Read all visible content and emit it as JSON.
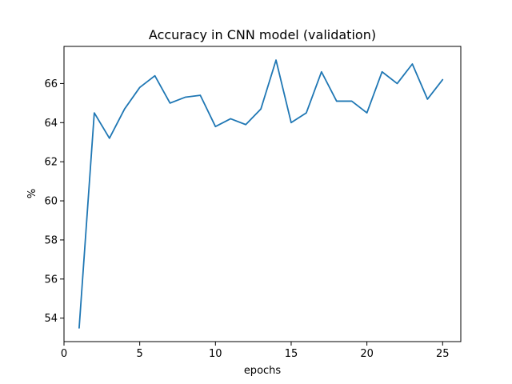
{
  "chart_data": {
    "type": "line",
    "title": "Accuracy in CNN model (validation)",
    "xlabel": "epochs",
    "ylabel": "%",
    "xlim": [
      0,
      26.2
    ],
    "ylim": [
      52.8,
      67.9
    ],
    "xticks": [
      0,
      5,
      10,
      15,
      20,
      25
    ],
    "yticks": [
      54,
      56,
      58,
      60,
      62,
      64,
      66
    ],
    "grid": false,
    "legend": "none",
    "series": [
      {
        "color": "#1f77b4",
        "x": [
          1,
          2,
          3,
          4,
          5,
          6,
          7,
          8,
          9,
          10,
          11,
          12,
          13,
          14,
          15,
          16,
          17,
          18,
          19,
          20,
          21,
          22,
          23,
          24,
          25
        ],
        "y": [
          53.5,
          64.5,
          63.2,
          64.7,
          65.8,
          66.4,
          65.0,
          65.3,
          65.4,
          63.8,
          64.2,
          63.9,
          64.7,
          67.2,
          64.0,
          64.5,
          66.6,
          65.1,
          65.1,
          64.5,
          66.6,
          66.0,
          67.0,
          65.2,
          66.2
        ]
      }
    ]
  }
}
